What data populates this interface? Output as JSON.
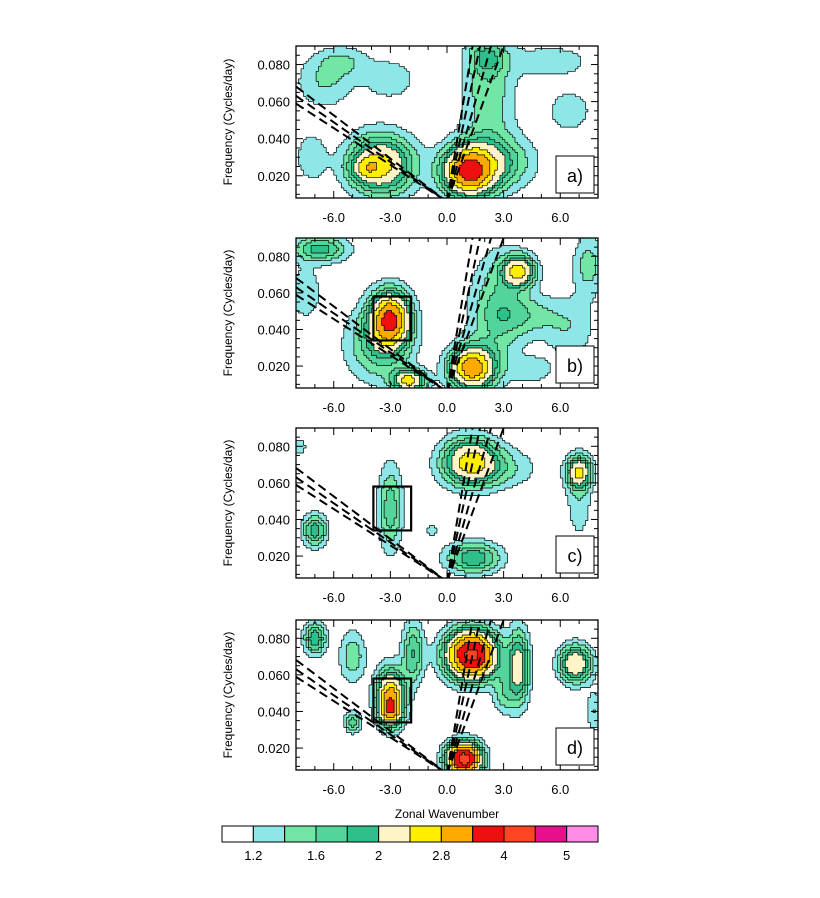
{
  "chart_data": {
    "type": "heatmap",
    "ylabel": "Frequency (Cycles/day)",
    "xlabel": "Zonal Wavenumber",
    "xlim": [
      -8,
      8
    ],
    "ylim": [
      0.008,
      0.09
    ],
    "x_ticks": [
      -6,
      -3,
      0,
      3,
      6
    ],
    "x_tick_labels": [
      "-6.0",
      "-3.0",
      "0.0",
      "3.0",
      "6.0"
    ],
    "y_ticks": [
      0.02,
      0.04,
      0.06,
      0.08
    ],
    "y_tick_labels": [
      "0.020",
      "0.040",
      "0.060",
      "0.080"
    ],
    "colorbar": {
      "levels": [
        1.2,
        1.4,
        1.6,
        1.8,
        2,
        2.4,
        2.8,
        3.3,
        4,
        4.5,
        5
      ],
      "labels": [
        {
          "level": 1.2,
          "text": "1.2"
        },
        {
          "level": 1.6,
          "text": "1.6"
        },
        {
          "level": 2,
          "text": "2"
        },
        {
          "level": 2.8,
          "text": "2.8"
        },
        {
          "level": 4,
          "text": "4"
        },
        {
          "level": 5,
          "text": "5"
        }
      ],
      "colors": [
        "#ffffff",
        "#8fe6e6",
        "#72e6a4",
        "#52d49a",
        "#2fbf8a",
        "#fff3c8",
        "#ffee00",
        "#ffaa00",
        "#ee1010",
        "#ff4422",
        "#e60f8c",
        "#ff8ce6"
      ]
    },
    "panels": [
      {
        "label": "a)",
        "box": null,
        "peaks": [
          {
            "x": -3.5,
            "y": 0.026,
            "sx": 1.2,
            "sy": 0.011,
            "amp": 1.55
          },
          {
            "x": -4.3,
            "y": 0.024,
            "sx": 0.5,
            "sy": 0.004,
            "amp": 0.6
          },
          {
            "x": 1.1,
            "y": 0.022,
            "sx": 0.9,
            "sy": 0.009,
            "amp": 2.2
          },
          {
            "x": 2.5,
            "y": 0.027,
            "sx": 1.4,
            "sy": 0.01,
            "amp": 0.8
          },
          {
            "x": 2.2,
            "y": 0.065,
            "sx": 1.0,
            "sy": 0.025,
            "amp": 0.55
          },
          {
            "x": 2.1,
            "y": 0.084,
            "sx": 0.6,
            "sy": 0.006,
            "amp": 0.55
          },
          {
            "x": -6.5,
            "y": 0.07,
            "sx": 1.1,
            "sy": 0.01,
            "amp": 0.4
          },
          {
            "x": -5.5,
            "y": 0.082,
            "sx": 1.0,
            "sy": 0.006,
            "amp": 0.35
          },
          {
            "x": -3.0,
            "y": 0.072,
            "sx": 1.0,
            "sy": 0.008,
            "amp": 0.35
          },
          {
            "x": 5.5,
            "y": 0.082,
            "sx": 1.5,
            "sy": 0.006,
            "amp": 0.35
          },
          {
            "x": 6.5,
            "y": 0.055,
            "sx": 1.0,
            "sy": 0.01,
            "amp": 0.3
          },
          {
            "x": -7.2,
            "y": 0.03,
            "sx": 0.6,
            "sy": 0.01,
            "amp": 0.35
          }
        ]
      },
      {
        "label": "b)",
        "box": {
          "x0": -3.9,
          "x1": -1.9,
          "y0": 0.034,
          "y1": 0.058
        },
        "peaks": [
          {
            "x": -3.0,
            "y": 0.046,
            "sx": 0.7,
            "sy": 0.01,
            "amp": 2.2
          },
          {
            "x": -3.6,
            "y": 0.032,
            "sx": 1.2,
            "sy": 0.014,
            "amp": 0.75
          },
          {
            "x": -2.0,
            "y": 0.012,
            "sx": 0.6,
            "sy": 0.004,
            "amp": 1.5
          },
          {
            "x": 1.3,
            "y": 0.019,
            "sx": 0.8,
            "sy": 0.008,
            "amp": 2.1
          },
          {
            "x": 2.6,
            "y": 0.05,
            "sx": 1.0,
            "sy": 0.022,
            "amp": 0.6
          },
          {
            "x": 3.8,
            "y": 0.072,
            "sx": 0.6,
            "sy": 0.006,
            "amp": 1.5
          },
          {
            "x": 4.2,
            "y": 0.048,
            "sx": 1.2,
            "sy": 0.008,
            "amp": 0.45
          },
          {
            "x": -6.7,
            "y": 0.084,
            "sx": 1.0,
            "sy": 0.005,
            "amp": 0.9
          },
          {
            "x": -7.5,
            "y": 0.06,
            "sx": 0.6,
            "sy": 0.01,
            "amp": 0.4
          },
          {
            "x": 7.5,
            "y": 0.075,
            "sx": 0.6,
            "sy": 0.012,
            "amp": 0.5
          },
          {
            "x": 6.5,
            "y": 0.04,
            "sx": 1.0,
            "sy": 0.012,
            "amp": 0.35
          },
          {
            "x": 4.5,
            "y": 0.018,
            "sx": 0.8,
            "sy": 0.005,
            "amp": 0.35
          }
        ]
      },
      {
        "label": "c)",
        "box": {
          "x0": -3.9,
          "x1": -1.9,
          "y0": 0.034,
          "y1": 0.058
        },
        "peaks": [
          {
            "x": -3.0,
            "y": 0.046,
            "sx": 0.45,
            "sy": 0.016,
            "amp": 0.75
          },
          {
            "x": -7.0,
            "y": 0.034,
            "sx": 0.45,
            "sy": 0.006,
            "amp": 0.95
          },
          {
            "x": 1.2,
            "y": 0.072,
            "sx": 1.0,
            "sy": 0.009,
            "amp": 1.4
          },
          {
            "x": 2.5,
            "y": 0.068,
            "sx": 1.6,
            "sy": 0.008,
            "amp": 0.45
          },
          {
            "x": 1.4,
            "y": 0.019,
            "sx": 1.0,
            "sy": 0.006,
            "amp": 1.0
          },
          {
            "x": 7.0,
            "y": 0.066,
            "sx": 0.45,
            "sy": 0.006,
            "amp": 1.35
          },
          {
            "x": 7.0,
            "y": 0.05,
            "sx": 0.5,
            "sy": 0.015,
            "amp": 0.35
          },
          {
            "x": -0.8,
            "y": 0.034,
            "sx": 0.2,
            "sy": 0.003,
            "amp": 0.35
          },
          {
            "x": -7.8,
            "y": 0.08,
            "sx": 0.3,
            "sy": 0.004,
            "amp": 0.3
          }
        ]
      },
      {
        "label": "d)",
        "box": {
          "x0": -3.9,
          "x1": -1.9,
          "y0": 0.034,
          "y1": 0.058
        },
        "peaks": [
          {
            "x": -3.0,
            "y": 0.048,
            "sx": 0.5,
            "sy": 0.01,
            "amp": 2.0
          },
          {
            "x": -3.0,
            "y": 0.04,
            "sx": 0.4,
            "sy": 0.005,
            "amp": 1.0
          },
          {
            "x": 1.3,
            "y": 0.071,
            "sx": 0.9,
            "sy": 0.009,
            "amp": 3.2
          },
          {
            "x": 0.9,
            "y": 0.014,
            "sx": 0.6,
            "sy": 0.006,
            "amp": 3.4
          },
          {
            "x": -7.0,
            "y": 0.08,
            "sx": 0.4,
            "sy": 0.006,
            "amp": 1.0
          },
          {
            "x": -5.0,
            "y": 0.07,
            "sx": 0.5,
            "sy": 0.01,
            "amp": 0.55
          },
          {
            "x": -1.8,
            "y": 0.072,
            "sx": 0.4,
            "sy": 0.012,
            "amp": 0.8
          },
          {
            "x": -5.0,
            "y": 0.034,
            "sx": 0.3,
            "sy": 0.004,
            "amp": 0.7
          },
          {
            "x": 3.8,
            "y": 0.064,
            "sx": 0.4,
            "sy": 0.014,
            "amp": 1.2
          },
          {
            "x": 3.0,
            "y": 0.05,
            "sx": 0.4,
            "sy": 0.008,
            "amp": 0.5
          },
          {
            "x": 6.8,
            "y": 0.066,
            "sx": 0.6,
            "sy": 0.007,
            "amp": 1.4
          },
          {
            "x": 7.8,
            "y": 0.04,
            "sx": 0.3,
            "sy": 0.008,
            "amp": 0.4
          }
        ]
      }
    ]
  }
}
